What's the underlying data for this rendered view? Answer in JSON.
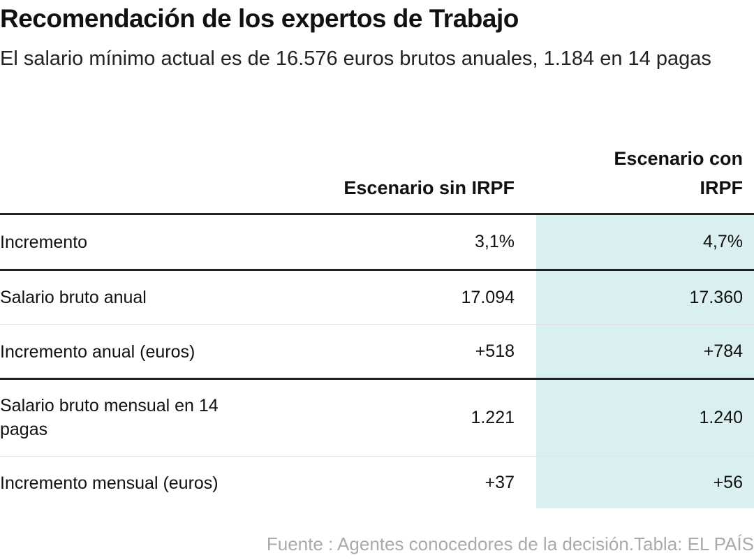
{
  "header": {
    "title": "Recomendación de los expertos de Trabajo",
    "subtitle": "El salario mínimo actual es de 16.576 euros brutos anuales, 1.184 en 14 pagas"
  },
  "table": {
    "columns": [
      "Escenario sin IRPF",
      "Escenario con IRPF"
    ],
    "rows": [
      {
        "label": "Incremento",
        "values": [
          "3,1%",
          "4,7%"
        ]
      },
      {
        "label": "Salario bruto anual",
        "values": [
          "17.094",
          "17.360"
        ]
      },
      {
        "label": "Incremento anual (euros)",
        "values": [
          "+518",
          "+784"
        ]
      },
      {
        "label": "Salario bruto mensual en 14 pagas",
        "values": [
          "1.221",
          "1.240"
        ]
      },
      {
        "label": "Incremento mensual (euros)",
        "values": [
          "+37",
          "+56"
        ]
      }
    ]
  },
  "footer": {
    "source": "Fuente : Agentes conocedores de la decisión.Tabla: EL PAÍS"
  }
}
